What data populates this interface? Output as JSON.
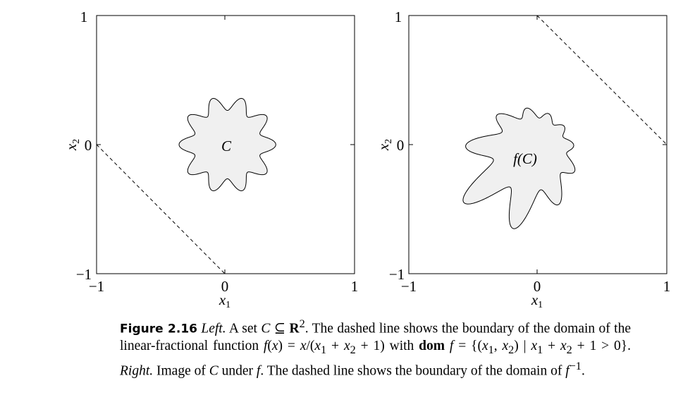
{
  "figure": {
    "left_panel": {
      "x_ticks": [
        "−1",
        "0",
        "1"
      ],
      "y_ticks": [
        "1",
        "0",
        "−1"
      ],
      "xlabel": "x1",
      "ylabel": "x2",
      "set_label": "C",
      "xlim": [
        -1,
        1
      ],
      "ylim": [
        -1,
        1
      ]
    },
    "right_panel": {
      "x_ticks": [
        "−1",
        "0",
        "1"
      ],
      "y_ticks": [
        "1",
        "0",
        "−1"
      ],
      "xlabel": "x1",
      "ylabel": "x2",
      "set_label": "f(C)",
      "xlim": [
        -1,
        1
      ],
      "ylim": [
        -1,
        1
      ]
    }
  },
  "caption": {
    "label": "Figure 2.16",
    "part1": "Left.",
    "part2": "A set",
    "part3": "The dashed line shows the boundary of the domain of the linear-fractional function",
    "part4": "with",
    "part5": "Right.",
    "part6": "Image of",
    "part7": "under",
    "part8": "The dashed line shows the boundary of the domain of"
  }
}
